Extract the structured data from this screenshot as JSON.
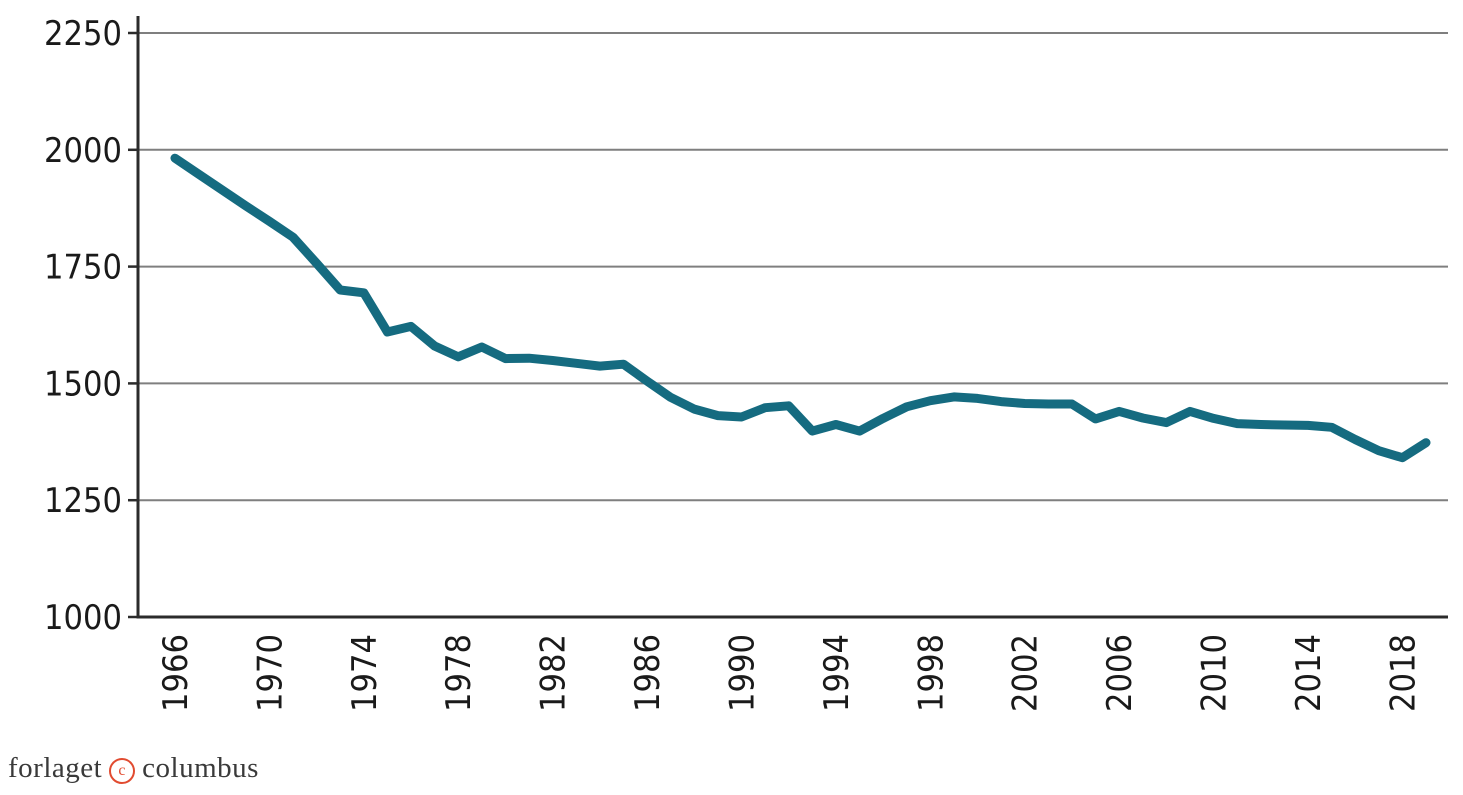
{
  "chart_data": {
    "type": "line",
    "title": "",
    "xlabel": "",
    "ylabel": "",
    "x": [
      1966,
      1967,
      1968,
      1969,
      1970,
      1971,
      1972,
      1973,
      1974,
      1975,
      1976,
      1977,
      1978,
      1979,
      1980,
      1981,
      1982,
      1983,
      1984,
      1985,
      1986,
      1987,
      1988,
      1989,
      1990,
      1991,
      1992,
      1993,
      1994,
      1995,
      1996,
      1997,
      1998,
      1999,
      2000,
      2001,
      2002,
      2003,
      2004,
      2005,
      2006,
      2007,
      2008,
      2009,
      2010,
      2011,
      2012,
      2013,
      2014,
      2015,
      2016,
      2017,
      2018,
      2019
    ],
    "values": [
      1982,
      1948,
      1914,
      1880,
      1847,
      1813,
      1757,
      1700,
      1694,
      1610,
      1622,
      1580,
      1557,
      1578,
      1553,
      1554,
      1549,
      1543,
      1537,
      1541,
      1505,
      1470,
      1445,
      1431,
      1428,
      1448,
      1452,
      1398,
      1412,
      1398,
      1425,
      1450,
      1463,
      1471,
      1468,
      1461,
      1457,
      1456,
      1456,
      1424,
      1440,
      1426,
      1416,
      1440,
      1425,
      1414,
      1412,
      1411,
      1410,
      1406,
      1380,
      1356,
      1341,
      1373
    ],
    "ylim": [
      1000,
      2250
    ],
    "yticks": [
      1000,
      1250,
      1500,
      1750,
      2000,
      2250
    ],
    "xtick_labels": [
      "1966",
      "1970",
      "1974",
      "1978",
      "1982",
      "1986",
      "1990",
      "1994",
      "1998",
      "2002",
      "2006",
      "2010",
      "2014",
      "2018"
    ],
    "xtick_every": 4,
    "grid": "horizontal",
    "legend": "none",
    "line_color": "#156b80",
    "line_width": 9,
    "gridline_color": "#7f7f7f",
    "axis_color": "#2b2b2b",
    "tick_label_color": "#1a1a1a"
  },
  "footer": {
    "logo_prefix": "forlaget",
    "logo_symbol": "c",
    "logo_suffix": "columbus",
    "logo_text_color": "#3a3a3a",
    "logo_accent_color": "#e14b30"
  }
}
